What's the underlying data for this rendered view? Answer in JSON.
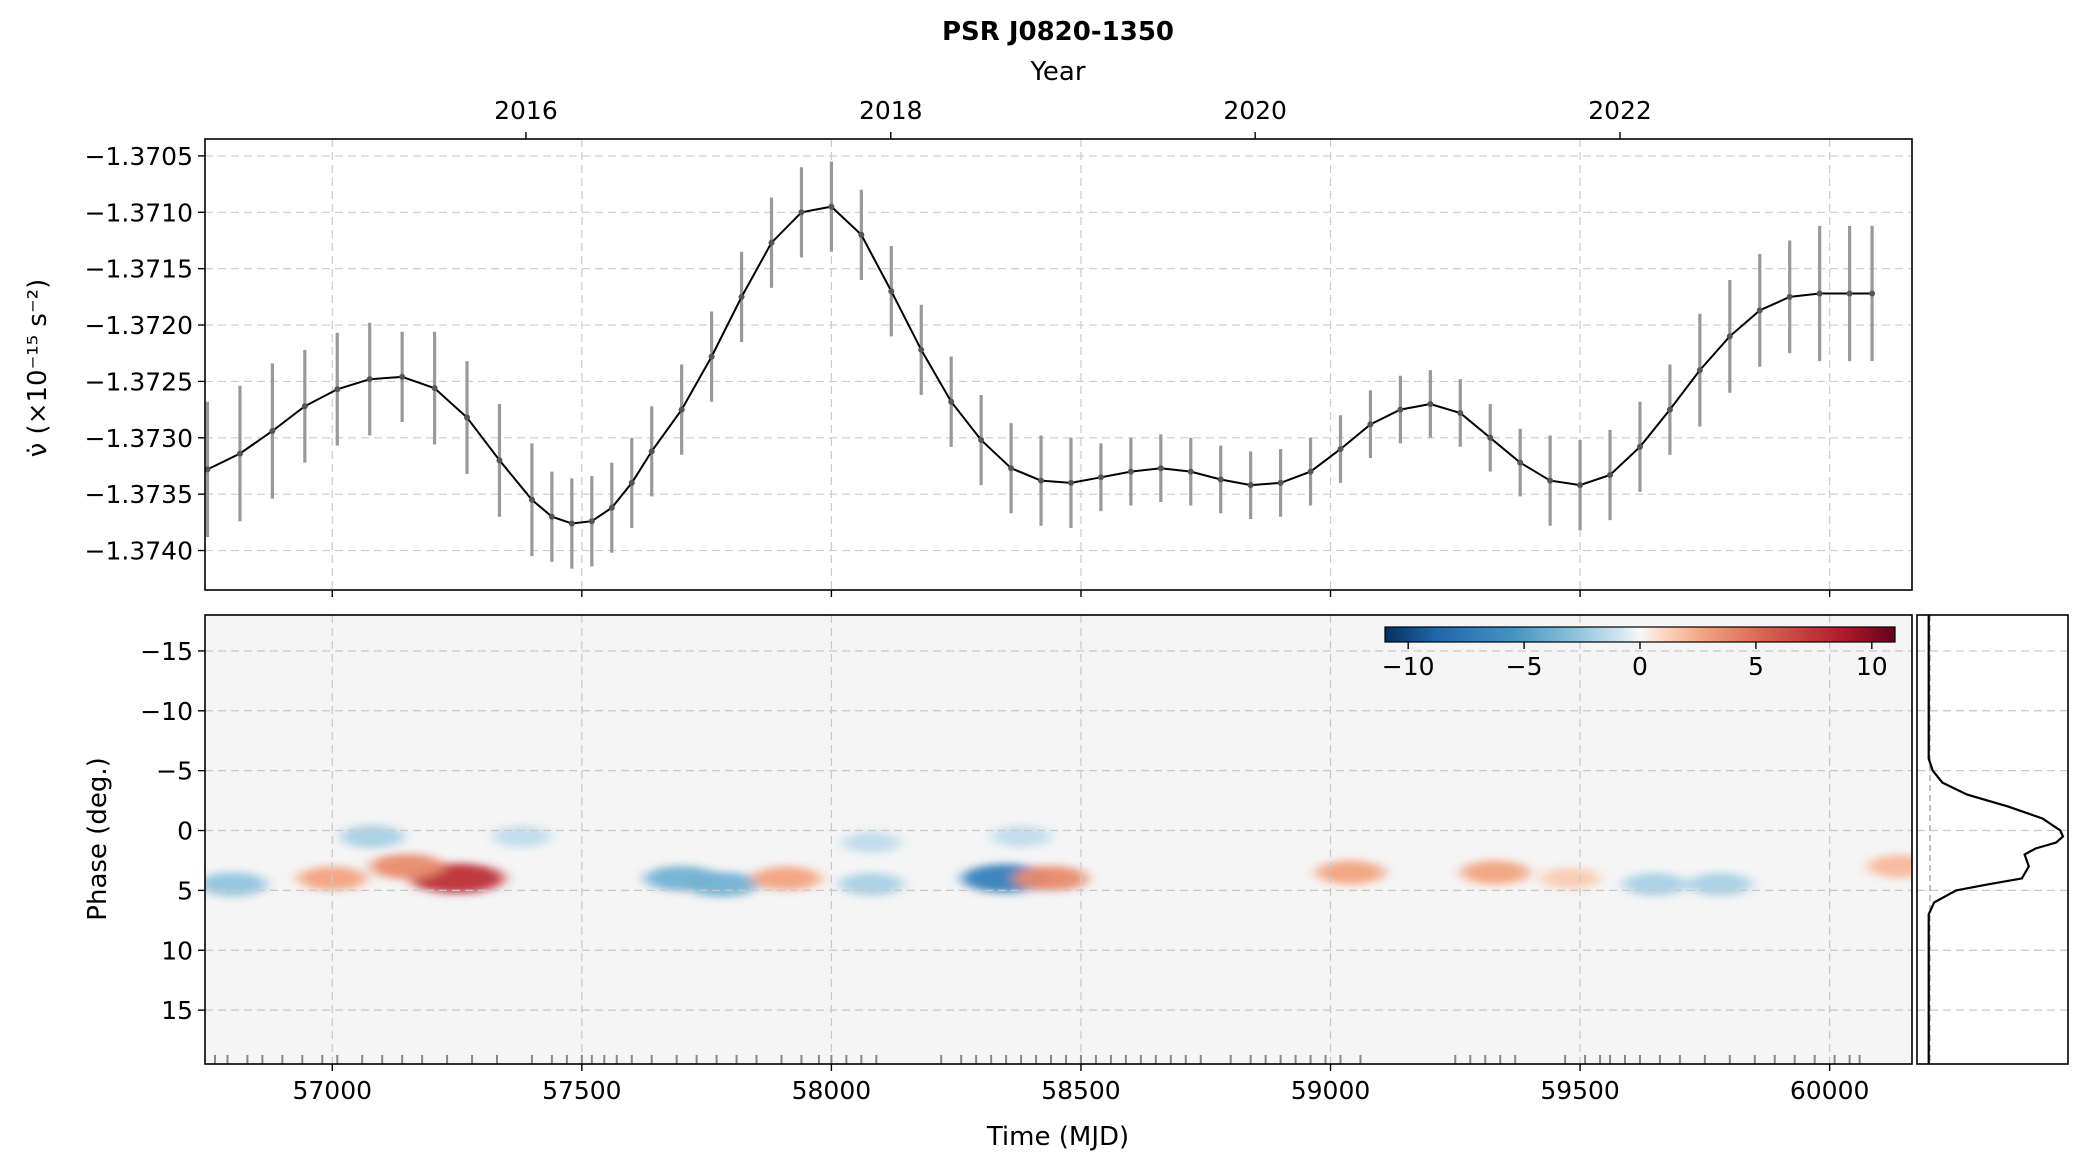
{
  "title": "PSR J0820-1350",
  "chart_data": [
    {
      "type": "line",
      "title": "PSR J0820-1350",
      "xlabel": "",
      "ylabel": "ν̇ (×10⁻¹⁵ s⁻²)",
      "top_axis_label": "Year",
      "top_axis_ticks": [
        {
          "mjd": 57388,
          "label": "2016"
        },
        {
          "mjd": 58119,
          "label": "2018"
        },
        {
          "mjd": 58849,
          "label": "2020"
        },
        {
          "mjd": 59580,
          "label": "2022"
        }
      ],
      "xlim": [
        56745,
        60165
      ],
      "ylim": [
        -1.37435,
        -1.37035
      ],
      "yticks": [
        -1.3705,
        -1.371,
        -1.3715,
        -1.372,
        -1.3725,
        -1.373,
        -1.3735,
        -1.374
      ],
      "ytick_labels": [
        "−1.3705",
        "−1.3710",
        "−1.3715",
        "−1.3720",
        "−1.3725",
        "−1.3730",
        "−1.3735",
        "−1.3740"
      ],
      "grid": true,
      "series": [
        {
          "color": "#000000",
          "errorbar_color": "#999999",
          "x": [
            56750,
            56815,
            56880,
            56945,
            57010,
            57075,
            57140,
            57205,
            57270,
            57335,
            57400,
            57440,
            57480,
            57520,
            57560,
            57600,
            57640,
            57700,
            57760,
            57820,
            57880,
            57940,
            58000,
            58060,
            58120,
            58180,
            58240,
            58300,
            58360,
            58420,
            58480,
            58540,
            58600,
            58660,
            58720,
            58780,
            58840,
            58900,
            58960,
            59020,
            59080,
            59140,
            59200,
            59260,
            59320,
            59380,
            59440,
            59500,
            59560,
            59620,
            59680,
            59740,
            59800,
            59860,
            59920,
            59980,
            60040,
            60085
          ],
          "y": [
            -1.37328,
            -1.37314,
            -1.37294,
            -1.37272,
            -1.37257,
            -1.37248,
            -1.37246,
            -1.37256,
            -1.37282,
            -1.3732,
            -1.37355,
            -1.3737,
            -1.37376,
            -1.37374,
            -1.37362,
            -1.3734,
            -1.37312,
            -1.37275,
            -1.37228,
            -1.37175,
            -1.37127,
            -1.371,
            -1.37095,
            -1.3712,
            -1.3717,
            -1.37222,
            -1.37268,
            -1.37302,
            -1.37327,
            -1.37338,
            -1.3734,
            -1.37335,
            -1.3733,
            -1.37327,
            -1.3733,
            -1.37337,
            -1.37342,
            -1.3734,
            -1.3733,
            -1.3731,
            -1.37288,
            -1.37275,
            -1.3727,
            -1.37278,
            -1.373,
            -1.37322,
            -1.37338,
            -1.37342,
            -1.37333,
            -1.37308,
            -1.37275,
            -1.3724,
            -1.3721,
            -1.37187,
            -1.37175,
            -1.37172,
            -1.37172,
            -1.37172
          ],
          "err": [
            0.0006,
            0.0006,
            0.0006,
            0.0005,
            0.0005,
            0.0005,
            0.0004,
            0.0005,
            0.0005,
            0.0005,
            0.0005,
            0.0004,
            0.0004,
            0.0004,
            0.0004,
            0.0004,
            0.0004,
            0.0004,
            0.0004,
            0.0004,
            0.0004,
            0.0004,
            0.0004,
            0.0004,
            0.0004,
            0.0004,
            0.0004,
            0.0004,
            0.0004,
            0.0004,
            0.0004,
            0.0003,
            0.0003,
            0.0003,
            0.0003,
            0.0003,
            0.0003,
            0.0003,
            0.0003,
            0.0003,
            0.0003,
            0.0003,
            0.0003,
            0.0003,
            0.0003,
            0.0003,
            0.0004,
            0.0004,
            0.0004,
            0.0004,
            0.0004,
            0.0005,
            0.0005,
            0.0005,
            0.0005,
            0.0006,
            0.0006,
            0.0006
          ]
        }
      ]
    },
    {
      "type": "heatmap",
      "xlabel": "Time (MJD)",
      "ylabel": "Phase (deg.)",
      "xlim": [
        56745,
        60165
      ],
      "ylim": [
        19.5,
        -18
      ],
      "xticks": [
        57000,
        57500,
        58000,
        58500,
        59000,
        59500,
        60000
      ],
      "xtick_labels": [
        "57000",
        "57500",
        "58000",
        "58500",
        "59000",
        "59500",
        "60000"
      ],
      "yticks": [
        -15,
        -10,
        -5,
        0,
        5,
        10,
        15
      ],
      "ytick_labels": [
        "−15",
        "−10",
        "−5",
        "0",
        "5",
        "10",
        "15"
      ],
      "grid": true,
      "colorbar": {
        "colormap": "RdBu_r",
        "range": [
          -11,
          11
        ],
        "ticks": [
          -10,
          -5,
          0,
          5,
          10
        ],
        "tick_labels": [
          "−10",
          "−5",
          "0",
          "5",
          "10"
        ],
        "placement": "top-right"
      },
      "features": [
        {
          "mjd": 57250,
          "phase": 4,
          "value": 10
        },
        {
          "mjd": 57150,
          "phase": 3,
          "value": 6
        },
        {
          "mjd": 57000,
          "phase": 4,
          "value": 5
        },
        {
          "mjd": 56800,
          "phase": 4.5,
          "value": -5
        },
        {
          "mjd": 57080,
          "phase": 0.5,
          "value": -4
        },
        {
          "mjd": 57380,
          "phase": 0.5,
          "value": -3
        },
        {
          "mjd": 57700,
          "phase": 4,
          "value": -6
        },
        {
          "mjd": 57780,
          "phase": 4.5,
          "value": -6
        },
        {
          "mjd": 57910,
          "phase": 4,
          "value": 5
        },
        {
          "mjd": 58080,
          "phase": 4.5,
          "value": -4
        },
        {
          "mjd": 58080,
          "phase": 1,
          "value": -3
        },
        {
          "mjd": 58350,
          "phase": 4,
          "value": -9
        },
        {
          "mjd": 58440,
          "phase": 4,
          "value": 6
        },
        {
          "mjd": 58380,
          "phase": 0.5,
          "value": -3
        },
        {
          "mjd": 59040,
          "phase": 3.5,
          "value": 5
        },
        {
          "mjd": 59330,
          "phase": 3.5,
          "value": 5
        },
        {
          "mjd": 59480,
          "phase": 4,
          "value": 3
        },
        {
          "mjd": 59650,
          "phase": 4.5,
          "value": -4
        },
        {
          "mjd": 59780,
          "phase": 4.5,
          "value": -4
        },
        {
          "mjd": 60140,
          "phase": 3,
          "value": 4
        }
      ],
      "toa_ticks_mjd": [
        56765,
        56790,
        56830,
        56860,
        56900,
        56940,
        56980,
        57010,
        57060,
        57100,
        57140,
        57180,
        57230,
        57280,
        57330,
        57400,
        57440,
        57470,
        57500,
        57520,
        57545,
        57570,
        57600,
        57640,
        57690,
        57730,
        57770,
        57810,
        57850,
        57900,
        57940,
        57975,
        58000,
        58030,
        58060,
        58090,
        58220,
        58260,
        58290,
        58320,
        58350,
        58380,
        58410,
        58440,
        58470,
        58500,
        58530,
        58560,
        58590,
        58620,
        58650,
        58680,
        58710,
        58740,
        58800,
        58840,
        58870,
        58900,
        58930,
        58960,
        58990,
        59020,
        59060,
        59250,
        59280,
        59310,
        59340,
        59370,
        59470,
        59510,
        59540,
        59560,
        59590,
        59620,
        59660,
        59700,
        59750,
        59800,
        59850,
        59890,
        59930,
        59970,
        60010,
        60040,
        60060
      ]
    },
    {
      "type": "line",
      "xlabel": "",
      "ylabel": "",
      "description_of_series": "mean pulse profile",
      "ylim": [
        19.5,
        -18
      ],
      "grid": true,
      "series": [
        {
          "color": "#000000",
          "phase": [
            -18,
            -6,
            -5,
            -4,
            -3,
            -2,
            -1,
            0,
            0.5,
            1,
            1.5,
            2,
            3,
            4,
            4.5,
            5,
            6,
            7,
            10,
            19.5
          ],
          "intensity": [
            0.02,
            0.02,
            0.05,
            0.12,
            0.3,
            0.6,
            0.85,
            0.98,
            1.0,
            0.95,
            0.8,
            0.72,
            0.75,
            0.7,
            0.45,
            0.22,
            0.06,
            0.02,
            0.02,
            0.02
          ]
        }
      ]
    }
  ]
}
